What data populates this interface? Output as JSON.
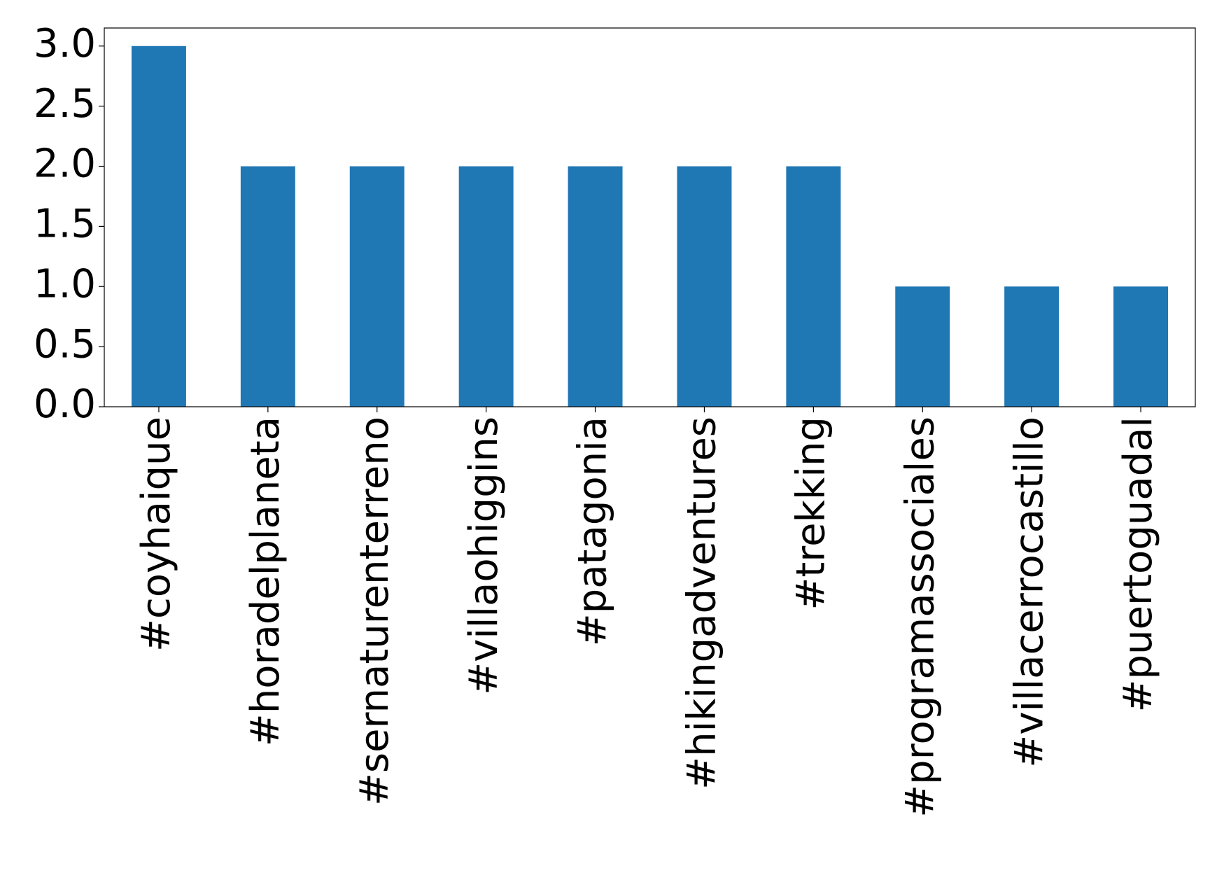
{
  "chart_data": {
    "type": "bar",
    "categories": [
      "#coyhaique",
      "#horadelplaneta",
      "#sernaturenterreno",
      "#villaohiggins",
      "#patagonia",
      "#hikingadventures",
      "#trekking",
      "#programassociales",
      "#villacerrocastillo",
      "#puertoguadal"
    ],
    "values": [
      3,
      2,
      2,
      2,
      2,
      2,
      2,
      1,
      1,
      1
    ],
    "color": "#1f77b4",
    "ylim": [
      0,
      3.15
    ],
    "yticks": [
      {
        "value": 0,
        "label": "0.0"
      },
      {
        "value": 0.5,
        "label": "0.5"
      },
      {
        "value": 1,
        "label": "1.0"
      },
      {
        "value": 1.5,
        "label": "1.5"
      },
      {
        "value": 2,
        "label": "2.0"
      },
      {
        "value": 2.5,
        "label": "2.5"
      },
      {
        "value": 3,
        "label": "3.0"
      }
    ],
    "grid": false
  }
}
